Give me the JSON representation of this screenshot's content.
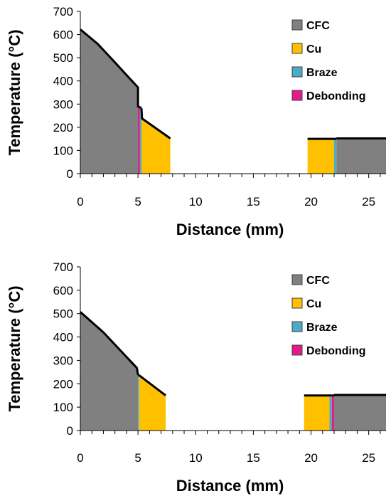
{
  "colors": {
    "cfc": "#808080",
    "cu": "#FFC000",
    "braze": "#4BACC6",
    "debonding": "#E6198C",
    "profile": "#000000"
  },
  "chart_data": [
    {
      "type": "area",
      "xlabel": "Distance (mm)",
      "ylabel": "Temperature (°C)",
      "xlim": [
        0,
        26.5
      ],
      "ylim": [
        0,
        700
      ],
      "x_ticks": [
        0,
        5,
        10,
        15,
        20,
        25
      ],
      "x_tick_labels": [
        "0",
        "5",
        "10",
        "15",
        "20",
        "25"
      ],
      "y_ticks": [
        0,
        100,
        200,
        300,
        400,
        500,
        600,
        700
      ],
      "y_tick_labels": [
        "0",
        "100",
        "200",
        "300",
        "400",
        "500",
        "600",
        "700"
      ],
      "legend": [
        "CFC",
        "Cu",
        "Braze",
        "Debonding"
      ],
      "legend_position": "top-right",
      "grid": false,
      "series": [
        {
          "name": "CFC",
          "color_key": "cfc",
          "points": [
            [
              0,
              622
            ],
            [
              1.5,
              560
            ],
            [
              3,
              480
            ],
            [
              4.2,
              415
            ],
            [
              5.0,
              372
            ],
            [
              5.0,
              290
            ],
            [
              5.2,
              285
            ]
          ]
        },
        {
          "name": "Debonding",
          "color_key": "debonding",
          "points": [
            [
              5.0,
              290
            ],
            [
              5.15,
              286
            ]
          ]
        },
        {
          "name": "Braze",
          "color_key": "braze",
          "points": [
            [
              5.15,
              286
            ],
            [
              5.3,
              284
            ]
          ]
        },
        {
          "name": "Cu",
          "color_key": "cu",
          "points": [
            [
              5.3,
              282
            ],
            [
              5.35,
              238
            ],
            [
              7.8,
              152
            ]
          ]
        },
        {
          "name": "Cu",
          "color_key": "cu",
          "points": [
            [
              19.7,
              150
            ],
            [
              22.0,
              150
            ]
          ]
        },
        {
          "name": "Braze",
          "color_key": "braze",
          "points": [
            [
              22.0,
              150
            ],
            [
              22.2,
              150
            ]
          ]
        },
        {
          "name": "CFC",
          "color_key": "cfc",
          "points": [
            [
              22.2,
              152
            ],
            [
              26.5,
              152
            ]
          ]
        }
      ]
    },
    {
      "type": "area",
      "xlabel": "Distance (mm)",
      "ylabel": "Temperature (°C)",
      "xlim": [
        0,
        26.5
      ],
      "ylim": [
        0,
        700
      ],
      "x_ticks": [
        0,
        5,
        10,
        15,
        20,
        25
      ],
      "x_tick_labels": [
        "0",
        "5",
        "10",
        "15",
        "20",
        "25"
      ],
      "y_ticks": [
        0,
        100,
        200,
        300,
        400,
        500,
        600,
        700
      ],
      "y_tick_labels": [
        "0",
        "100",
        "200",
        "300",
        "400",
        "500",
        "600",
        "700"
      ],
      "legend": [
        "CFC",
        "Cu",
        "Braze",
        "Debonding"
      ],
      "legend_position": "top-right",
      "grid": false,
      "series": [
        {
          "name": "CFC",
          "color_key": "cfc",
          "points": [
            [
              0,
              507
            ],
            [
              2,
              420
            ],
            [
              4,
              315
            ],
            [
              4.9,
              268
            ],
            [
              5.0,
              238
            ]
          ]
        },
        {
          "name": "Braze",
          "color_key": "braze",
          "points": [
            [
              5.0,
              238
            ],
            [
              5.1,
              236
            ]
          ]
        },
        {
          "name": "Cu",
          "color_key": "cu",
          "points": [
            [
              5.1,
              236
            ],
            [
              7.4,
              150
            ]
          ]
        },
        {
          "name": "Cu",
          "color_key": "cu",
          "points": [
            [
              19.4,
              150
            ],
            [
              21.6,
              150
            ]
          ]
        },
        {
          "name": "Braze",
          "color_key": "braze",
          "points": [
            [
              21.6,
              150
            ],
            [
              21.8,
              150
            ]
          ]
        },
        {
          "name": "Debonding",
          "color_key": "debonding",
          "points": [
            [
              21.8,
              150
            ],
            [
              22.0,
              150
            ]
          ]
        },
        {
          "name": "CFC",
          "color_key": "cfc",
          "points": [
            [
              22.0,
              152
            ],
            [
              26.5,
              152
            ]
          ]
        }
      ]
    }
  ]
}
